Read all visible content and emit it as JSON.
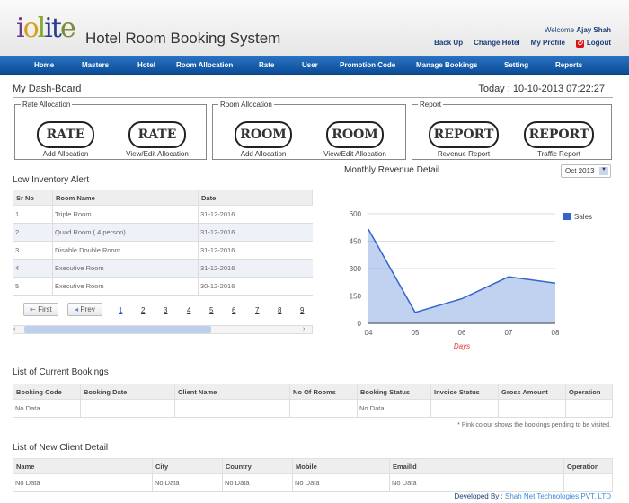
{
  "header": {
    "logo": "iolite",
    "title": "Hotel Room Booking System",
    "welcome_prefix": "Welcome",
    "user": "Ajay Shah",
    "links": [
      "Back Up",
      "Change Hotel",
      "My Profile",
      "Logout"
    ]
  },
  "nav": [
    "Home",
    "Masters",
    "Hotel",
    "Room Allocation",
    "Rate",
    "User",
    "Promotion Code",
    "Manage Bookings",
    "Setting",
    "Reports"
  ],
  "dashboard": {
    "title": "My Dash-Board",
    "today": "Today : 10-10-2013 07:22:27"
  },
  "groups": [
    {
      "legend": "Rate Allocation",
      "buttons": [
        {
          "label": "RATE",
          "caption": "Add Allocation"
        },
        {
          "label": "RATE",
          "caption": "View/Edit Allocation"
        }
      ]
    },
    {
      "legend": "Room Allocation",
      "buttons": [
        {
          "label": "ROOM",
          "caption": "Add Allocation"
        },
        {
          "label": "ROOM",
          "caption": "View/Edit Allocation"
        }
      ]
    },
    {
      "legend": "Report",
      "buttons": [
        {
          "label": "REPORT",
          "caption": "Revenue Report"
        },
        {
          "label": "REPORT",
          "caption": "Traffic Report"
        }
      ]
    }
  ],
  "inventory": {
    "title": "Low Inventory Alert",
    "columns": [
      "Sr No",
      "Room Name",
      "Date"
    ],
    "rows": [
      [
        "1",
        "Triple Room",
        "31-12-2016"
      ],
      [
        "2",
        "Quad Room ( 4 person)",
        "31-12-2016"
      ],
      [
        "3",
        "Disable Double Room",
        "31-12-2016"
      ],
      [
        "4",
        "Executive Room",
        "31-12-2016"
      ],
      [
        "5",
        "Executive Room",
        "30-12-2016"
      ]
    ],
    "first": "First",
    "prev": "Prev",
    "pages": [
      "1",
      "2",
      "3",
      "4",
      "5",
      "6",
      "7",
      "8",
      "9"
    ]
  },
  "revenue": {
    "title": "Monthly Revenue Detail",
    "month": "Oct 2013"
  },
  "chart_data": {
    "type": "area",
    "title": "Monthly Revenue Detail",
    "x": [
      "04",
      "05",
      "06",
      "07",
      "08"
    ],
    "series": [
      {
        "name": "Sales",
        "values": [
          515,
          60,
          135,
          255,
          220
        ],
        "color": "#3366cc"
      }
    ],
    "xlabel": "Days",
    "ylabel": "",
    "ylim": [
      0,
      600
    ],
    "yticks": [
      "0",
      "150",
      "300",
      "450",
      "600"
    ],
    "grid": true,
    "legend": "right"
  },
  "bookings": {
    "title": "List of Current Bookings",
    "columns": [
      "Booking Code",
      "Booking Date",
      "Client Name",
      "No Of Rooms",
      "Booking Status",
      "Invoice Status",
      "Gross Amount",
      "Operation"
    ],
    "row": [
      "No Data",
      "",
      "",
      "",
      "No Data",
      "",
      "",
      ""
    ],
    "note": "* Pink colour shows the bookings pending to be visited."
  },
  "clients": {
    "title": "List of New Client Detail",
    "columns": [
      "Name",
      "City",
      "Country",
      "Mobile",
      "EmailId",
      "Operation"
    ],
    "row": [
      "No Data",
      "No Data",
      "No Data",
      "No Data",
      "No Data",
      ""
    ]
  },
  "footer": {
    "prefix": "Developed By :",
    "company": "Shah Net Technologies PVT. LTD"
  }
}
